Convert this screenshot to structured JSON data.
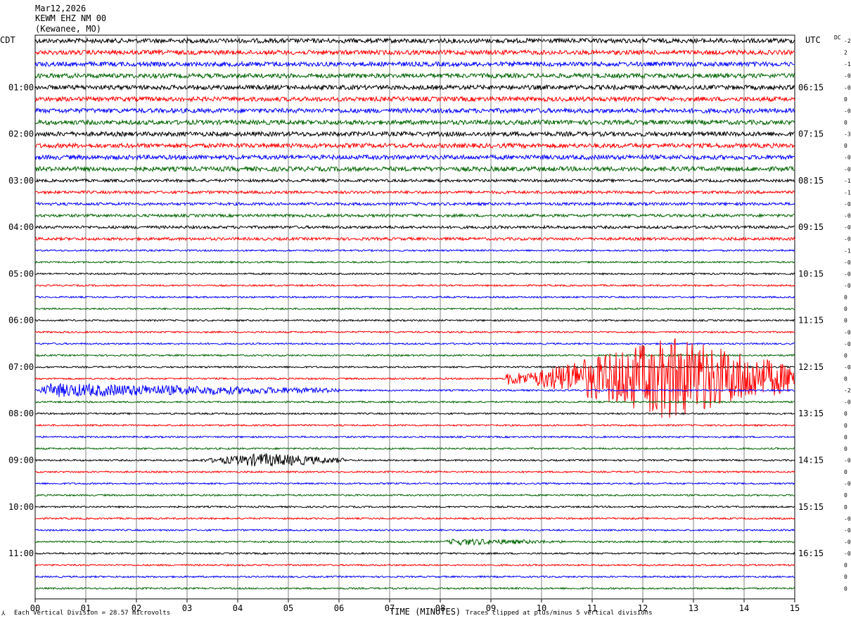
{
  "header": {
    "date": "Mar12,2026",
    "station": "KEWM EHZ NM 00",
    "location": "(Kewanee, MO)"
  },
  "left_timezone": "CDT",
  "right_timezone": "UTC",
  "dc_label": "DC",
  "footer": {
    "left_mark": "⅄",
    "scale_note": "Each Vertical Division =   28.57 microvolts",
    "clip_note": "Traces clipped at plus/minus 5 vertical divisions"
  },
  "chart_data": {
    "type": "seismogram",
    "xlabel": "TIME (MINUTES)",
    "xlim": [
      0,
      15
    ],
    "x_ticks": [
      "00",
      "01",
      "02",
      "03",
      "04",
      "05",
      "06",
      "07",
      "08",
      "09",
      "10",
      "11",
      "12",
      "13",
      "14",
      "15"
    ],
    "left_hour_labels": [
      "01:00",
      "02:00",
      "03:00",
      "04:00",
      "05:00",
      "06:00",
      "07:00",
      "08:00",
      "09:00",
      "10:00",
      "11:00"
    ],
    "right_hour_labels": [
      "06:15",
      "07:15",
      "08:15",
      "09:15",
      "10:15",
      "11:15",
      "12:15",
      "13:15",
      "14:15",
      "15:15",
      "16:15"
    ],
    "trace_colors": [
      "#000000",
      "#ff0000",
      "#0000ff",
      "#006400"
    ],
    "trace_minutes_per_line": 15,
    "dc_offsets": [
      "-2",
      "2",
      "-1",
      "-0",
      "-0",
      "0",
      "-0",
      "0",
      "-3",
      "0",
      "-0",
      "-0",
      "-1",
      "-1",
      "-0",
      "-0",
      "-0",
      "-0",
      "-1",
      "-0",
      "-0",
      "-0",
      "0",
      "0",
      "0",
      "-0",
      "-0",
      "0",
      "-0",
      "0",
      "-2",
      "-0",
      "0",
      "0",
      "0",
      "0",
      "-0",
      "0",
      "-0",
      "0",
      "0",
      "-0",
      "-0",
      "-0",
      "-0",
      "0",
      "0",
      "0"
    ],
    "events": [
      {
        "trace": 29,
        "start_min": 9.3,
        "peak_min": 12.6,
        "end_min": 15,
        "amplitude": "clipped"
      },
      {
        "trace": 30,
        "start_min": 0,
        "peak_min": 0.3,
        "end_min": 6.0,
        "amplitude": "moderate"
      },
      {
        "trace": 36,
        "start_min": 3.0,
        "peak_min": 4.5,
        "end_min": 6.1,
        "amplitude": "moderate"
      },
      {
        "trace": 43,
        "start_min": 8.0,
        "peak_min": 8.3,
        "end_min": 10.5,
        "amplitude": "small"
      }
    ]
  }
}
